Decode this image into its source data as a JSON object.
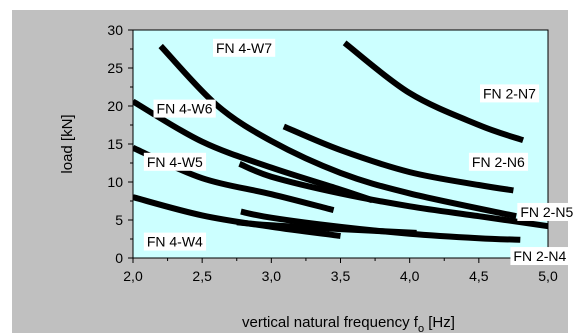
{
  "chart_data": {
    "type": "line",
    "title": "",
    "xlabel": "vertical natural frequency f",
    "xlabel_subscript": "o",
    "xlabel_unit": "[Hz]",
    "ylabel": "load [kN]",
    "xlim": [
      2.0,
      5.0
    ],
    "ylim": [
      0,
      30
    ],
    "x_ticks": [
      2.0,
      2.5,
      3.0,
      3.5,
      4.0,
      4.5,
      5.0
    ],
    "x_tick_labels": [
      "2,0",
      "2,5",
      "3,0",
      "3,5",
      "4,0",
      "4,5",
      "5,0"
    ],
    "y_ticks": [
      0,
      5,
      10,
      15,
      20,
      25,
      30
    ],
    "y_tick_labels": [
      "0",
      "5",
      "10",
      "15",
      "20",
      "25",
      "30"
    ],
    "grid": false,
    "series": [
      {
        "name": "FN 4-W7",
        "x": [
          2.2,
          2.6,
          3.0,
          3.5,
          4.0,
          4.77
        ],
        "y": [
          27.9,
          20.2,
          15.4,
          11.2,
          8.5,
          5.5
        ]
      },
      {
        "name": "FN 4-W6",
        "x": [
          2.0,
          2.5,
          3.0,
          3.5,
          3.73
        ],
        "y": [
          20.6,
          15.3,
          11.9,
          9.0,
          7.6
        ]
      },
      {
        "name": "FN 4-W5",
        "x": [
          2.0,
          2.5,
          3.0,
          3.45
        ],
        "y": [
          14.5,
          10.5,
          8.4,
          6.3
        ]
      },
      {
        "name": "FN 4-W4",
        "x": [
          2.0,
          2.5,
          3.0,
          3.5
        ],
        "y": [
          8.0,
          5.6,
          4.1,
          2.9
        ]
      },
      {
        "name": "FN 2-N7",
        "x": [
          3.53,
          4.0,
          4.5,
          4.82
        ],
        "y": [
          28.3,
          21.7,
          17.5,
          15.5
        ]
      },
      {
        "name": "FN 2-N6",
        "x": [
          3.09,
          3.5,
          4.0,
          4.5,
          4.75
        ],
        "y": [
          17.3,
          14.2,
          11.3,
          9.6,
          8.9
        ]
      },
      {
        "name": "FN 2-N5",
        "x": [
          2.77,
          3.0,
          3.5,
          4.0,
          4.5,
          5.0
        ],
        "y": [
          12.4,
          10.7,
          8.5,
          6.8,
          5.5,
          4.2
        ]
      },
      {
        "name": "FN 2-N4",
        "x": [
          2.78,
          3.0,
          3.5,
          4.0,
          4.5,
          4.8
        ],
        "y": [
          6.1,
          5.3,
          4.1,
          3.2,
          2.6,
          2.4
        ]
      },
      {
        "name": "",
        "x": [
          2.75,
          3.0,
          3.5,
          4.05
        ],
        "y": [
          4.7,
          4.3,
          3.8,
          3.3
        ]
      }
    ],
    "annotations": [
      {
        "text": "FN 4-W7",
        "x": 2.6,
        "y": 27.0
      },
      {
        "text": "FN 4-W6",
        "x": 2.17,
        "y": 19.0
      },
      {
        "text": "FN 4-W5",
        "x": 2.1,
        "y": 12.0
      },
      {
        "text": "FN 4-W4",
        "x": 2.1,
        "y": 1.5
      },
      {
        "text": "FN 2-N7",
        "x": 4.53,
        "y": 21.0
      },
      {
        "text": "FN 2-N6",
        "x": 4.45,
        "y": 12.0
      },
      {
        "text": "FN 2-N5",
        "x": 4.8,
        "y": 5.4
      },
      {
        "text": "FN 2-N4",
        "x": 4.75,
        "y": -0.4
      }
    ]
  }
}
